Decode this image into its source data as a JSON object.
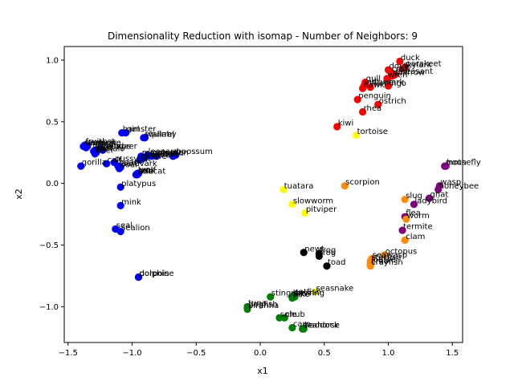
{
  "chart_data": {
    "type": "scatter",
    "title": "Dimensionality Reduction with isomap - Number of Neighbors: 9",
    "xlabel": "x1",
    "ylabel": "x2",
    "xlim": [
      -1.53,
      1.58
    ],
    "ylim": [
      -1.29,
      1.11
    ],
    "x_ticks": [
      -1.5,
      -1.0,
      -0.5,
      0.0,
      0.5,
      1.0,
      1.5
    ],
    "y_ticks": [
      -1.0,
      -0.5,
      0.0,
      0.5,
      1.0
    ],
    "x_tick_labels": [
      "−1.5",
      "−1.0",
      "−0.5",
      "0.0",
      "0.5",
      "1.0",
      "1.5"
    ],
    "y_tick_labels": [
      "−1.0",
      "−0.5",
      "0.0",
      "0.5",
      "1.0"
    ],
    "grid": false,
    "points": [
      {
        "label": "duck",
        "x": 1.09,
        "y": 0.99,
        "color": "#ff0000"
      },
      {
        "label": "parakeet",
        "x": 1.13,
        "y": 0.94,
        "color": "#ff0000"
      },
      {
        "label": "skylark",
        "x": 1.11,
        "y": 0.93,
        "color": "#ff0000"
      },
      {
        "label": "dove",
        "x": 1.0,
        "y": 0.92,
        "color": "#ff0000"
      },
      {
        "label": "crow",
        "x": 1.02,
        "y": 0.9,
        "color": "#ff0000"
      },
      {
        "label": "pheasant",
        "x": 1.05,
        "y": 0.88,
        "color": "#ff0000"
      },
      {
        "label": "sparrow",
        "x": 1.03,
        "y": 0.87,
        "color": "#ff0000"
      },
      {
        "label": "wren",
        "x": 0.99,
        "y": 0.85,
        "color": "#ff0000"
      },
      {
        "label": "gull",
        "x": 0.82,
        "y": 0.82,
        "color": "#ff0000"
      },
      {
        "label": "vulture",
        "x": 0.81,
        "y": 0.79,
        "color": "#ff0000"
      },
      {
        "label": "hawk",
        "x": 0.8,
        "y": 0.77,
        "color": "#ff0000"
      },
      {
        "label": "flamingo",
        "x": 0.86,
        "y": 0.78,
        "color": "#ff0000"
      },
      {
        "label": "lark",
        "x": 1.0,
        "y": 0.79,
        "color": "#ff0000"
      },
      {
        "label": "penguin",
        "x": 0.76,
        "y": 0.68,
        "color": "#ff0000"
      },
      {
        "label": "ostrich",
        "x": 0.92,
        "y": 0.64,
        "color": "#ff0000"
      },
      {
        "label": "rhea",
        "x": 0.8,
        "y": 0.58,
        "color": "#ff0000"
      },
      {
        "label": "kiwi",
        "x": 0.6,
        "y": 0.46,
        "color": "#ff0000"
      },
      {
        "label": "tortoise",
        "x": 0.75,
        "y": 0.39,
        "color": "#ffff00"
      },
      {
        "label": "hamster",
        "x": -1.08,
        "y": 0.41,
        "color": "#0000ff"
      },
      {
        "label": "girl",
        "x": -1.05,
        "y": 0.41,
        "color": "#0000ff"
      },
      {
        "label": "squirrel",
        "x": -0.91,
        "y": 0.37,
        "color": "#0000ff"
      },
      {
        "label": "wallaby",
        "x": -0.9,
        "y": 0.37,
        "color": "#0000ff"
      },
      {
        "label": "mink",
        "x": -1.09,
        "y": -0.18,
        "color": "#0000ff"
      },
      {
        "label": "seal",
        "x": -1.13,
        "y": -0.37,
        "color": "#0000ff"
      },
      {
        "label": "sealion",
        "x": -1.09,
        "y": -0.39,
        "color": "#0000ff"
      },
      {
        "label": "dolphin",
        "x": -0.95,
        "y": -0.76,
        "color": "#0000ff"
      },
      {
        "label": "porpoise",
        "x": -0.95,
        "y": -0.76,
        "color": "#0000ff"
      },
      {
        "label": "platypus",
        "x": -1.09,
        "y": -0.03,
        "color": "#0000ff"
      },
      {
        "label": "vole",
        "x": -0.97,
        "y": 0.07,
        "color": "#0000ff"
      },
      {
        "label": "lynx",
        "x": -0.96,
        "y": 0.08,
        "color": "#0000ff"
      },
      {
        "label": "wolf",
        "x": -0.95,
        "y": 0.08,
        "color": "#0000ff"
      },
      {
        "label": "bobcat",
        "x": -0.96,
        "y": 0.07,
        "color": "#0000ff"
      },
      {
        "label": "aardvark",
        "x": -1.09,
        "y": 0.13,
        "color": "#0000ff"
      },
      {
        "label": "bear",
        "x": -1.11,
        "y": 0.14,
        "color": "#0000ff"
      },
      {
        "label": "boar",
        "x": -1.1,
        "y": 0.12,
        "color": "#0000ff"
      },
      {
        "label": "calf",
        "x": -1.2,
        "y": 0.16,
        "color": "#0000ff"
      },
      {
        "label": "pussycat",
        "x": -1.14,
        "y": 0.17,
        "color": "#0000ff"
      },
      {
        "label": "gorilla",
        "x": -1.4,
        "y": 0.14,
        "color": "#0000ff"
      },
      {
        "label": "mongoose",
        "x": -0.93,
        "y": 0.22,
        "color": "#0000ff"
      },
      {
        "label": "polecat",
        "x": -0.85,
        "y": 0.22,
        "color": "#0000ff"
      },
      {
        "label": "cheetah",
        "x": -0.9,
        "y": 0.21,
        "color": "#0000ff"
      },
      {
        "label": "leopard",
        "x": -0.88,
        "y": 0.23,
        "color": "#0000ff"
      },
      {
        "label": "oryx",
        "x": -0.81,
        "y": 0.22,
        "color": "#0000ff"
      },
      {
        "label": "opossum",
        "x": -0.66,
        "y": 0.23,
        "color": "#0000ff"
      },
      {
        "label": "lion",
        "x": -0.68,
        "y": 0.22,
        "color": "#0000ff"
      },
      {
        "label": "elephant",
        "x": -0.92,
        "y": 0.2,
        "color": "#0000ff"
      },
      {
        "label": "giraffe",
        "x": -0.94,
        "y": 0.19,
        "color": "#0000ff"
      },
      {
        "label": "antelope",
        "x": -1.29,
        "y": 0.27,
        "color": "#0000ff"
      },
      {
        "label": "buffalo",
        "x": -1.28,
        "y": 0.25,
        "color": "#0000ff"
      },
      {
        "label": "deer",
        "x": -1.29,
        "y": 0.24,
        "color": "#0000ff"
      },
      {
        "label": "pony",
        "x": -1.25,
        "y": 0.28,
        "color": "#0000ff"
      },
      {
        "label": "goat",
        "x": -1.3,
        "y": 0.26,
        "color": "#0000ff"
      },
      {
        "label": "reindeer",
        "x": -1.23,
        "y": 0.27,
        "color": "#0000ff"
      },
      {
        "label": "raccoon",
        "x": -1.38,
        "y": 0.3,
        "color": "#0000ff"
      },
      {
        "label": "fruitbat",
        "x": -1.37,
        "y": 0.31,
        "color": "#0000ff"
      },
      {
        "label": "vampire",
        "x": -1.35,
        "y": 0.3,
        "color": "#0000ff"
      },
      {
        "label": "mole",
        "x": -1.36,
        "y": 0.29,
        "color": "#0000ff"
      },
      {
        "label": "hare",
        "x": -1.37,
        "y": 0.3,
        "color": "#0000ff"
      },
      {
        "label": "tuatara",
        "x": 0.18,
        "y": -0.05,
        "color": "#ffff00"
      },
      {
        "label": "slowworm",
        "x": 0.25,
        "y": -0.17,
        "color": "#ffff00"
      },
      {
        "label": "pitviper",
        "x": 0.35,
        "y": -0.24,
        "color": "#ffff00"
      },
      {
        "label": "seasnake",
        "x": 0.43,
        "y": -0.88,
        "color": "#ffff00"
      },
      {
        "label": "scorpion",
        "x": 0.66,
        "y": -0.02,
        "color": "#ff8c00"
      },
      {
        "label": "housefly",
        "x": 1.45,
        "y": 0.14,
        "color": "#800080"
      },
      {
        "label": "moth",
        "x": 1.44,
        "y": 0.14,
        "color": "#800080"
      },
      {
        "label": "wasp",
        "x": 1.4,
        "y": -0.02,
        "color": "#800080"
      },
      {
        "label": "honeybee",
        "x": 1.39,
        "y": -0.05,
        "color": "#800080"
      },
      {
        "label": "gnat",
        "x": 1.32,
        "y": -0.12,
        "color": "#800080"
      },
      {
        "label": "ladybird",
        "x": 1.2,
        "y": -0.17,
        "color": "#800080"
      },
      {
        "label": "flea",
        "x": 1.13,
        "y": -0.27,
        "color": "#800080"
      },
      {
        "label": "termite",
        "x": 1.11,
        "y": -0.38,
        "color": "#800080"
      },
      {
        "label": "slug",
        "x": 1.13,
        "y": -0.13,
        "color": "#ff8c00"
      },
      {
        "label": "worm",
        "x": 1.14,
        "y": -0.29,
        "color": "#ff8c00"
      },
      {
        "label": "clam",
        "x": 1.13,
        "y": -0.46,
        "color": "#ff8c00"
      },
      {
        "label": "octopus",
        "x": 0.97,
        "y": -0.58,
        "color": "#ff8c00"
      },
      {
        "label": "seawasp",
        "x": 0.87,
        "y": -0.61,
        "color": "#ff8c00"
      },
      {
        "label": "starfish",
        "x": 0.86,
        "y": -0.63,
        "color": "#ff8c00"
      },
      {
        "label": "lobster",
        "x": 0.86,
        "y": -0.65,
        "color": "#ff8c00"
      },
      {
        "label": "crab",
        "x": 0.86,
        "y": -0.66,
        "color": "#ff8c00"
      },
      {
        "label": "crayfish",
        "x": 0.86,
        "y": -0.67,
        "color": "#ff8c00"
      },
      {
        "label": "newt",
        "x": 0.34,
        "y": -0.56,
        "color": "#000000"
      },
      {
        "label": "frog",
        "x": 0.46,
        "y": -0.57,
        "color": "#000000"
      },
      {
        "label": "frog",
        "x": 0.46,
        "y": -0.59,
        "color": "#000000"
      },
      {
        "label": "toad",
        "x": 0.52,
        "y": -0.67,
        "color": "#000000"
      },
      {
        "label": "stingray",
        "x": 0.08,
        "y": -0.92,
        "color": "#008000"
      },
      {
        "label": "bass",
        "x": 0.25,
        "y": -0.92,
        "color": "#008000"
      },
      {
        "label": "catfish",
        "x": 0.26,
        "y": -0.91,
        "color": "#008000"
      },
      {
        "label": "herring",
        "x": 0.27,
        "y": -0.92,
        "color": "#008000"
      },
      {
        "label": "pike",
        "x": 0.25,
        "y": -0.93,
        "color": "#008000"
      },
      {
        "label": "tuna",
        "x": -0.1,
        "y": -1.0,
        "color": "#008000"
      },
      {
        "label": "piranha",
        "x": -0.1,
        "y": -1.02,
        "color": "#008000"
      },
      {
        "label": "dogfish",
        "x": -0.1,
        "y": -1.01,
        "color": "#008000"
      },
      {
        "label": "sole",
        "x": 0.15,
        "y": -1.09,
        "color": "#008000"
      },
      {
        "label": "chub",
        "x": 0.19,
        "y": -1.09,
        "color": "#008000"
      },
      {
        "label": "carp",
        "x": 0.25,
        "y": -1.17,
        "color": "#008000"
      },
      {
        "label": "haddock",
        "x": 0.34,
        "y": -1.18,
        "color": "#008000"
      },
      {
        "label": "seahorse",
        "x": 0.33,
        "y": -1.18,
        "color": "#008000"
      }
    ]
  }
}
